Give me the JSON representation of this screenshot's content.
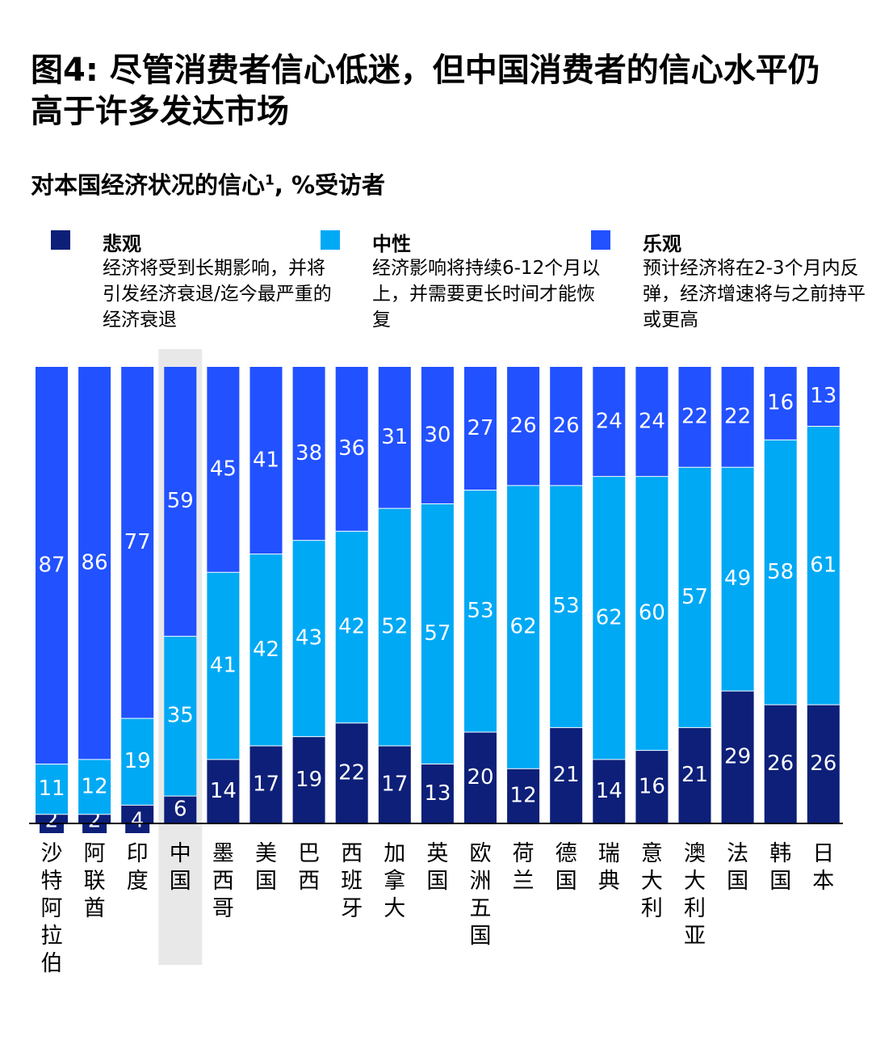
{
  "title": "图4: 尽管消费者信心低迷，但中国消费者的信心水平仍高于许多发达市场",
  "subtitle": "对本国经济状况的信心",
  "subtitle_footnote": "1",
  "subtitle_unit": ", %受访者",
  "legend": [
    {
      "name": "悲观",
      "desc": "经济将受到长期影响，并将引发经济衰退/迄今最严重的经济衰退",
      "color": "#0d1f78"
    },
    {
      "name": "中性",
      "desc": "经济影响将持续6-12个月以上，并需要更长时间才能恢复",
      "color": "#00a9f4"
    },
    {
      "name": "乐观",
      "desc": "预计经济将在2-3个月内反弹，经济增速将与之前持平或更高",
      "color": "#2251ff"
    }
  ],
  "chart_data": {
    "type": "bar",
    "stacked": true,
    "categories": [
      "沙特阿拉伯",
      "阿联酋",
      "印度",
      "中国",
      "墨西哥",
      "美国",
      "巴西",
      "西班牙",
      "加拿大",
      "英国",
      "欧洲五国",
      "荷兰",
      "德国",
      "瑞典",
      "意大利",
      "澳大利亚",
      "法国",
      "韩国",
      "日本"
    ],
    "highlight": "中国",
    "series": [
      {
        "name": "悲观",
        "color": "#0d1f78",
        "values": [
          2,
          2,
          4,
          6,
          14,
          17,
          19,
          22,
          17,
          13,
          20,
          12,
          21,
          14,
          16,
          21,
          29,
          26,
          26
        ]
      },
      {
        "name": "中性",
        "color": "#00a9f4",
        "values": [
          11,
          12,
          19,
          35,
          41,
          42,
          43,
          42,
          52,
          57,
          53,
          62,
          53,
          62,
          60,
          57,
          49,
          58,
          61
        ]
      },
      {
        "name": "乐观",
        "color": "#2251ff",
        "values": [
          87,
          86,
          77,
          59,
          45,
          41,
          38,
          36,
          31,
          30,
          27,
          26,
          26,
          24,
          24,
          22,
          22,
          16,
          13
        ]
      }
    ],
    "ylim": [
      0,
      100
    ]
  }
}
